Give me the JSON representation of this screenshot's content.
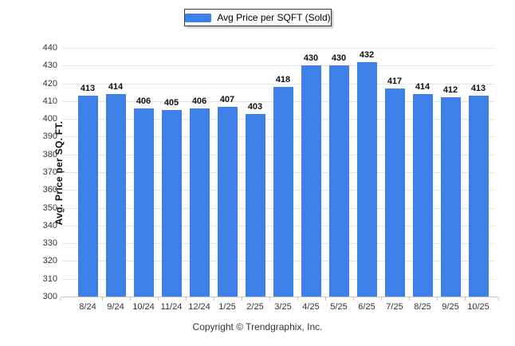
{
  "legend": {
    "label": "Avg Price per SQFT (Sold)",
    "swatch_color": "#3e7fe8"
  },
  "chart_data": {
    "type": "bar",
    "title": "",
    "series_name": "Avg Price per SQFT (Sold)",
    "categories": [
      "8/24",
      "9/24",
      "10/24",
      "11/24",
      "12/24",
      "1/25",
      "2/25",
      "3/25",
      "4/25",
      "5/25",
      "6/25",
      "7/25",
      "8/25",
      "9/25",
      "10/25"
    ],
    "values": [
      413,
      414,
      406,
      405,
      406,
      407,
      403,
      418,
      430,
      430,
      432,
      417,
      414,
      412,
      413
    ],
    "xlabel": "",
    "ylabel": "Avg. Price per SQ. FT.",
    "ylim": [
      300,
      440
    ],
    "ytick_step": 10,
    "grid": "horizontal",
    "legend_position": "top-center",
    "bar_color": "#3e7fe8",
    "value_labels": true
  },
  "footer": {
    "text": "Copyright © Trendgraphix, Inc."
  }
}
